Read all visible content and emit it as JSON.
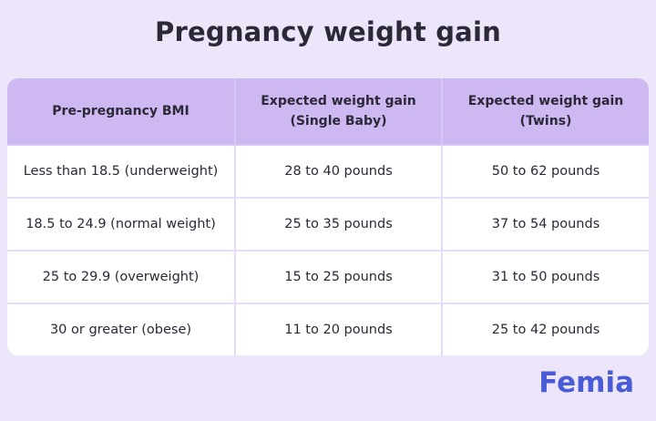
{
  "header": {
    "title": "Pregnancy weight gain"
  },
  "table": {
    "columns": [
      [
        "Pre-pregnancy BMI"
      ],
      [
        "Expected weight gain",
        "(Single Baby)"
      ],
      [
        "Expected weight gain",
        "(Twins)"
      ]
    ],
    "rows": [
      [
        "Less than 18.5 (underweight)",
        "28 to 40 pounds",
        "50 to 62 pounds"
      ],
      [
        "18.5 to 24.9 (normal weight)",
        "25 to 35 pounds",
        "37 to 54 pounds"
      ],
      [
        "25 to 29.9 (overweight)",
        "15 to 25 pounds",
        "31 to 50 pounds"
      ],
      [
        "30 or greater (obese)",
        "11 to 20 pounds",
        "25 to 42 pounds"
      ]
    ]
  },
  "footer": {
    "brand": "Femia"
  }
}
